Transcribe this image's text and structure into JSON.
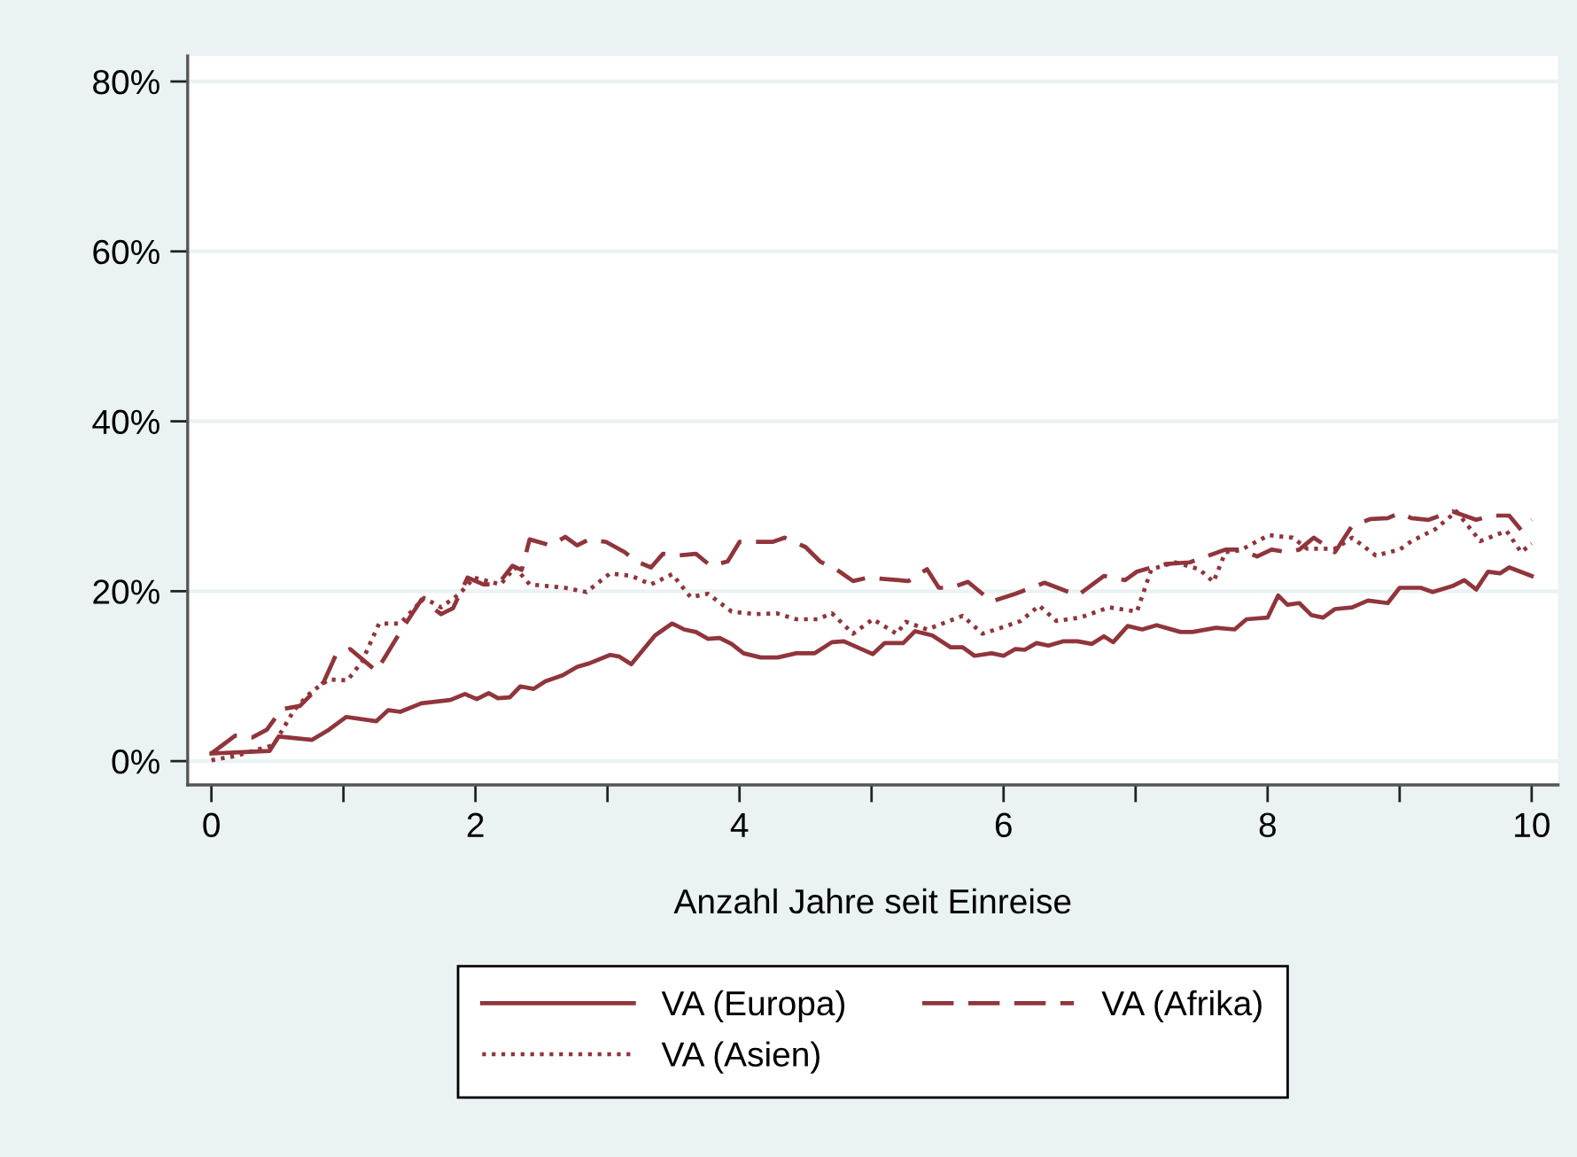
{
  "chart_data": {
    "type": "line",
    "xlabel": "Anzahl Jahre seit Einreise",
    "xlim": [
      -0.18,
      10.2
    ],
    "xticks": [
      0,
      {
        "value": 1,
        "label": null
      },
      2,
      {
        "value": 3,
        "label": null
      },
      4,
      {
        "value": 5,
        "label": null
      },
      6,
      {
        "value": 7,
        "label": null
      },
      8,
      {
        "value": 9,
        "label": null
      },
      10
    ],
    "ylim": [
      -2.8,
      83
    ],
    "yticks": [
      {
        "value": 0,
        "label": "0%"
      },
      {
        "value": 20,
        "label": "20%"
      },
      {
        "value": 40,
        "label": "40%"
      },
      {
        "value": 60,
        "label": "60%"
      },
      {
        "value": 80,
        "label": "80%"
      }
    ],
    "grid": "y",
    "legend": "bottom",
    "series": [
      {
        "name": "VA (Europa)",
        "color": "#90353b",
        "line_style": "solid",
        "x": [
          0,
          0.44,
          0.51,
          0.76,
          0.89,
          1.02,
          1.25,
          1.34,
          1.43,
          1.59,
          1.81,
          1.92,
          2.01,
          2.1,
          2.17,
          2.26,
          2.34,
          2.44,
          2.53,
          2.66,
          2.77,
          2.86,
          3.02,
          3.09,
          3.18,
          3.36,
          3.49,
          3.58,
          3.67,
          3.76,
          3.85,
          3.94,
          4.03,
          4.16,
          4.29,
          4.43,
          4.57,
          4.7,
          4.79,
          5.01,
          5.1,
          5.24,
          5.33,
          5.46,
          5.6,
          5.69,
          5.78,
          5.91,
          6.0,
          6.09,
          6.16,
          6.25,
          6.34,
          6.45,
          6.56,
          6.67,
          6.76,
          6.83,
          6.94,
          7.05,
          7.16,
          7.34,
          7.43,
          7.61,
          7.75,
          7.84,
          8.0,
          8.08,
          8.15,
          8.24,
          8.33,
          8.42,
          8.51,
          8.64,
          8.76,
          8.91,
          9.0,
          9.16,
          9.25,
          9.4,
          9.49,
          9.58,
          9.67,
          9.76,
          9.83,
          10.0
        ],
        "values": [
          0.9,
          1.2,
          2.9,
          2.5,
          3.7,
          5.2,
          4.7,
          6.0,
          5.8,
          6.8,
          7.2,
          7.9,
          7.3,
          8.0,
          7.4,
          7.5,
          8.8,
          8.5,
          9.4,
          10.1,
          11.1,
          11.5,
          12.5,
          12.3,
          11.4,
          14.8,
          16.2,
          15.5,
          15.2,
          14.4,
          14.5,
          13.8,
          12.7,
          12.2,
          12.2,
          12.7,
          12.7,
          14.0,
          14.1,
          12.6,
          13.9,
          13.9,
          15.3,
          14.8,
          13.4,
          13.4,
          12.4,
          12.7,
          12.4,
          13.2,
          13.1,
          13.9,
          13.6,
          14.1,
          14.1,
          13.8,
          14.7,
          14.0,
          15.9,
          15.5,
          16.0,
          15.2,
          15.2,
          15.7,
          15.5,
          16.7,
          16.9,
          19.5,
          18.4,
          18.6,
          17.2,
          16.9,
          17.9,
          18.1,
          18.9,
          18.6,
          20.4,
          20.4,
          19.9,
          20.6,
          21.3,
          20.2,
          22.3,
          22.1,
          22.8,
          21.8
        ]
      },
      {
        "name": "VA (Afrika)",
        "color": "#90353b",
        "line_style": "dashed",
        "x": [
          0,
          0.18,
          0.31,
          0.42,
          0.53,
          0.67,
          0.85,
          0.94,
          1.05,
          1.25,
          1.43,
          1.59,
          1.74,
          1.83,
          1.94,
          2.06,
          2.17,
          2.28,
          2.35,
          2.41,
          2.57,
          2.68,
          2.77,
          2.86,
          2.99,
          3.13,
          3.22,
          3.33,
          3.42,
          3.53,
          3.67,
          3.78,
          3.91,
          4.0,
          4.25,
          4.34,
          4.5,
          4.61,
          4.74,
          4.86,
          4.97,
          5.28,
          5.42,
          5.51,
          5.6,
          5.73,
          5.91,
          6.09,
          6.31,
          6.56,
          6.76,
          6.92,
          7.01,
          7.12,
          7.23,
          7.41,
          7.68,
          7.79,
          7.92,
          8.03,
          8.15,
          8.24,
          8.35,
          8.51,
          8.64,
          8.78,
          8.91,
          9.0,
          9.09,
          9.22,
          9.4,
          9.58,
          9.69,
          9.83,
          9.92,
          10.0
        ],
        "values": [
          0.9,
          3.0,
          2.8,
          3.7,
          6.1,
          6.5,
          9.3,
          12.4,
          13.2,
          10.6,
          15.2,
          19.0,
          17.3,
          18.0,
          21.6,
          20.8,
          20.8,
          23.0,
          22.5,
          26.1,
          25.4,
          26.4,
          25.4,
          26.1,
          25.8,
          24.6,
          23.5,
          22.8,
          24.4,
          24.2,
          24.4,
          23.0,
          23.5,
          25.8,
          25.8,
          26.3,
          25.2,
          23.5,
          22.5,
          21.2,
          21.6,
          21.2,
          22.6,
          20.4,
          20.4,
          21.1,
          18.8,
          19.7,
          21.0,
          19.5,
          21.8,
          21.3,
          22.3,
          22.8,
          23.2,
          23.4,
          24.9,
          24.9,
          24.1,
          24.9,
          24.6,
          24.9,
          26.3,
          24.6,
          27.7,
          28.5,
          28.6,
          29.2,
          28.6,
          28.4,
          29.4,
          28.4,
          28.9,
          28.9,
          27.2,
          28.4
        ]
      },
      {
        "name": "VA (Asien)",
        "color": "#90353b",
        "line_style": "dotted",
        "x": [
          0,
          0.18,
          0.36,
          0.47,
          0.63,
          0.76,
          0.89,
          1.03,
          1.14,
          1.27,
          1.43,
          1.61,
          1.74,
          1.88,
          1.99,
          2.19,
          2.3,
          2.41,
          2.55,
          2.68,
          2.84,
          3.02,
          3.18,
          3.33,
          3.49,
          3.63,
          3.76,
          3.94,
          4.12,
          4.28,
          4.43,
          4.59,
          4.7,
          4.86,
          5.01,
          5.19,
          5.26,
          5.42,
          5.69,
          5.84,
          6.0,
          6.13,
          6.27,
          6.4,
          6.58,
          6.8,
          7.01,
          7.12,
          7.3,
          7.48,
          7.59,
          7.68,
          7.79,
          8.01,
          8.19,
          8.3,
          8.51,
          8.64,
          8.82,
          9.0,
          9.09,
          9.27,
          9.43,
          9.61,
          9.81,
          9.92,
          10.0
        ],
        "values": [
          0.1,
          0.6,
          1.4,
          1.9,
          6.1,
          8.2,
          9.6,
          9.5,
          11.7,
          16.2,
          16.2,
          19.2,
          18.1,
          19.7,
          21.6,
          20.8,
          22.8,
          20.8,
          20.6,
          20.4,
          19.9,
          22.1,
          21.8,
          20.8,
          22.0,
          19.3,
          19.7,
          17.6,
          17.3,
          17.4,
          16.7,
          16.7,
          17.4,
          15.0,
          16.7,
          15.0,
          16.4,
          15.5,
          17.1,
          15.0,
          15.8,
          16.5,
          18.3,
          16.5,
          16.9,
          18.1,
          17.6,
          22.6,
          23.4,
          22.6,
          21.1,
          24.6,
          24.8,
          26.6,
          26.3,
          25.0,
          25.0,
          26.3,
          24.2,
          24.9,
          25.9,
          27.3,
          29.4,
          25.9,
          27.1,
          24.6,
          25.6
        ]
      }
    ]
  }
}
